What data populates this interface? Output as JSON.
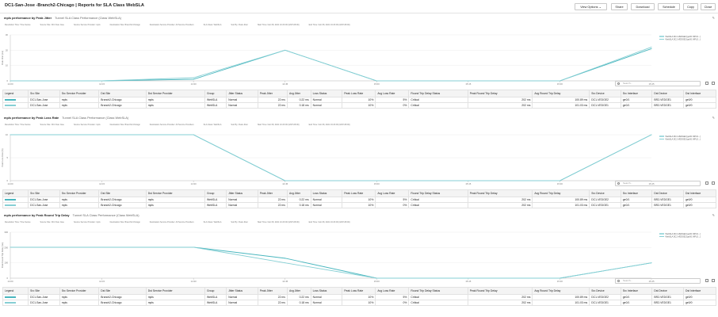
{
  "header": {
    "title": "DC1-San-Jose  -Branch2-Chicago | Reports for SLA Class WebSLA",
    "buttons": [
      "View Options ⌄",
      "Share",
      "Download",
      "Schedule",
      "Copy",
      "Close"
    ]
  },
  "filter_labels": [
    "Resolution Time: Time Series",
    "Source Site: DC1 San Jose",
    "Source Service Provider: mpls",
    "Destination Site: Branch2-Chicago",
    "Destination Service Provider: All Service Providers",
    "SLA Class: WebSLA",
    "Sort By: Peak Jitter",
    "Start Time: Feb 08, 2021 10:23:00 (GMT-08:00)",
    "End Time: Feb 08, 2021 16:23:00 (GMT-08:00)"
  ],
  "x_ticks": [
    "14:00",
    "14:15",
    "14:30",
    "14:45",
    "15:00",
    "15:15",
    "15:30",
    "15:45"
  ],
  "legend": [
    "WebSLA DC1-VEDGE2 [ge0/1 MPLS...]",
    "WebSLA DC1-VEDGE2 [ge0/1 MPLS...]"
  ],
  "search_placeholder": "Search...",
  "columns": [
    "Legend",
    "Src Site",
    "Src Service Provider",
    "Dst Site",
    "Dst Service Provider",
    "Group",
    "Jitter Status",
    "Peak Jitter",
    "Avg Jitter",
    "Loss Status",
    "Peak Loss Rate",
    "Avg Loss Rate",
    "Round Trip Delay Status",
    "Peak Round Trip Delay",
    "Avg Round Trip Delay",
    "Src Device",
    "Src Interface",
    "Dst Device",
    "Dst Interface"
  ],
  "rows": [
    [
      "",
      "DC1-San-Jose",
      "mpls",
      "Branch2-Chicago",
      "mpls",
      "WebSLA",
      "Normal",
      "22 ms",
      "0.22 ms",
      "Normal",
      "10%",
      "5%",
      "Critical",
      "202 ms",
      "100.89 ms",
      "DC1-VEDGE2",
      "ge0/1",
      "BR2-VEDGE1",
      "ge0/0"
    ],
    [
      "",
      "DC1-San-Jose",
      "mpls",
      "Branch2-Chicago",
      "mpls",
      "WebSLA",
      "Normal",
      "22 ms",
      "0.18 ms",
      "Normal",
      "10%",
      "0%",
      "Critical",
      "202 ms",
      "101.03 ms",
      "DC1-VEDGE1",
      "ge0/1",
      "BR2-VEDGE1",
      "ge0/0"
    ]
  ],
  "sections": [
    {
      "title": "mpls performance by Peak Jitter",
      "subtitle": "Tunnel SLA Class Performance (Class WebSLA)",
      "ylabel": "Peak Jitter (ms)",
      "yticks": [
        "0",
        "10",
        "20",
        "30"
      ],
      "ymax": 30,
      "chart_data": {
        "type": "line",
        "x": [
          "14:00",
          "14:15",
          "14:30",
          "14:45",
          "15:00",
          "15:15",
          "15:30",
          "15:45"
        ],
        "series": [
          {
            "name": "WebSLA DC1-VEDGE2 [ge0/1 MPLS...]",
            "values": [
              0,
              0,
              1,
              20,
              0,
              0,
              0,
              21
            ]
          },
          {
            "name": "WebSLA DC1-VEDGE2 [ge0/1 MPLS...]",
            "values": [
              0,
              0,
              2,
              20,
              0,
              0,
              0,
              22
            ]
          }
        ]
      }
    },
    {
      "title": "mpls performance by Peak Loss Rate",
      "subtitle": "Tunnel SLA Class Performance (Class WebSLA)",
      "ylabel": "Peak Loss Rate (%)",
      "yticks": [
        "0",
        "5",
        "10"
      ],
      "ymax": 10,
      "chart_data": {
        "type": "line",
        "x": [
          "14:00",
          "14:15",
          "14:30",
          "14:45",
          "15:00",
          "15:15",
          "15:30",
          "15:45"
        ],
        "series": [
          {
            "name": "WebSLA DC1-VEDGE2 [ge0/1 MPLS...]",
            "values": [
              10,
              10,
              10,
              0,
              0,
              0,
              0,
              10
            ]
          },
          {
            "name": "WebSLA DC1-VEDGE2 [ge0/1 MPLS...]",
            "values": [
              10,
              10,
              10,
              0,
              0,
              0,
              0,
              10
            ]
          }
        ]
      }
    },
    {
      "title": "mpls performance by Peak Round Trip Delay",
      "subtitle": "Tunnel SLA Class Performance (Class WebSLA)",
      "ylabel": "Peak Round Trip Delay (ms)",
      "yticks": [
        "0",
        "100",
        "200",
        "300"
      ],
      "ymax": 300,
      "chart_data": {
        "type": "line",
        "x": [
          "14:00",
          "14:15",
          "14:30",
          "14:45",
          "15:00",
          "15:15",
          "15:30",
          "15:45"
        ],
        "series": [
          {
            "name": "WebSLA DC1-VEDGE2 [ge0/1 MPLS...]",
            "values": [
              202,
              202,
              202,
              130,
              0,
              0,
              0,
              100
            ]
          },
          {
            "name": "WebSLA DC1-VEDGE2 [ge0/1 MPLS...]",
            "values": [
              202,
              202,
              202,
              100,
              0,
              0,
              0,
              100
            ]
          }
        ]
      }
    }
  ]
}
